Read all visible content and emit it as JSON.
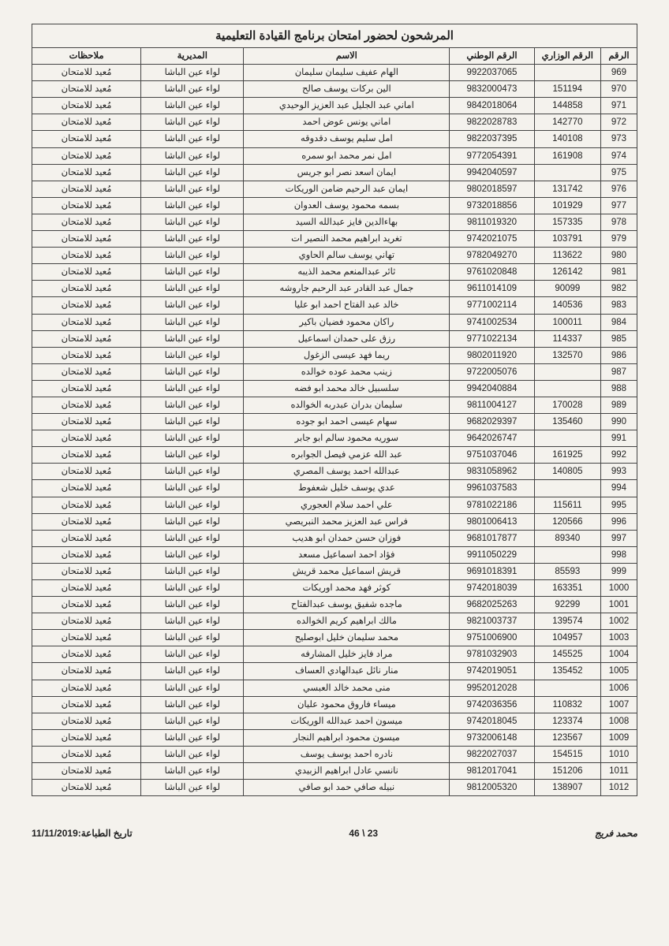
{
  "title": "المرشحون لحضور امتحان برنامج القيادة التعليمية",
  "columns": [
    "الرقم",
    "الرقم الوزاري",
    "الرقم الوطني",
    "الاسم",
    "المديرية",
    "ملاحظات"
  ],
  "directorate": "لواء عين الباشا",
  "note": "مُعيد للامتحان",
  "rows": [
    {
      "n": 969,
      "min": "",
      "nat": "9922037065",
      "name": "الهام عفيف سليمان سليمان"
    },
    {
      "n": 970,
      "min": "151194",
      "nat": "9832000473",
      "name": "الين بركات يوسف صالح"
    },
    {
      "n": 971,
      "min": "144858",
      "nat": "9842018064",
      "name": "اماني عبد الجليل عبد العزيز الوحيدي"
    },
    {
      "n": 972,
      "min": "142770",
      "nat": "9822028783",
      "name": "اماني يونس عوض احمد"
    },
    {
      "n": 973,
      "min": "140108",
      "nat": "9822037395",
      "name": "امل سليم يوسف دقدوقه"
    },
    {
      "n": 974,
      "min": "161908",
      "nat": "9772054391",
      "name": "امل نمر محمد ابو سمره"
    },
    {
      "n": 975,
      "min": "",
      "nat": "9942040597",
      "name": "ايمان اسعد نصر ابو جريس"
    },
    {
      "n": 976,
      "min": "131742",
      "nat": "9802018597",
      "name": "ايمان عبد الرحيم ضامن الوريكات"
    },
    {
      "n": 977,
      "min": "101929",
      "nat": "9732018856",
      "name": "بسمه محمود يوسف العدوان"
    },
    {
      "n": 978,
      "min": "157335",
      "nat": "9811019320",
      "name": "بهاءالدين فايز عبدالله السيد"
    },
    {
      "n": 979,
      "min": "103791",
      "nat": "9742021075",
      "name": "تغريد ابراهيم محمد النصير ات"
    },
    {
      "n": 980,
      "min": "113622",
      "nat": "9782049270",
      "name": "تهاني يوسف سالم الحاوي"
    },
    {
      "n": 981,
      "min": "126142",
      "nat": "9761020848",
      "name": "ثائر عبدالمنعم محمد الذيبه"
    },
    {
      "n": 982,
      "min": "90099",
      "nat": "9611014109",
      "name": "جمال عبد القادر عبد الرحيم جاروشه"
    },
    {
      "n": 983,
      "min": "140536",
      "nat": "9771002114",
      "name": "خالد عبد الفتاح احمد ابو عليا"
    },
    {
      "n": 984,
      "min": "100011",
      "nat": "9741002534",
      "name": "راكان محمود فضيان باكير"
    },
    {
      "n": 985,
      "min": "114337",
      "nat": "9771022134",
      "name": "رزق على حمدان اسماعيل"
    },
    {
      "n": 986,
      "min": "132570",
      "nat": "9802011920",
      "name": "ريما فهد عيسى الزغول"
    },
    {
      "n": 987,
      "min": "",
      "nat": "9722005076",
      "name": "زينب محمد عوده خوالده"
    },
    {
      "n": 988,
      "min": "",
      "nat": "9942040884",
      "name": "سلسبيل خالد محمد ابو فضه"
    },
    {
      "n": 989,
      "min": "170028",
      "nat": "9811004127",
      "name": "سليمان بدران عبدربه الخوالده"
    },
    {
      "n": 990,
      "min": "135460",
      "nat": "9682029397",
      "name": "سهام عيسى احمد ابو جوده"
    },
    {
      "n": 991,
      "min": "",
      "nat": "9642026747",
      "name": "سوريه محمود سالم ابو جابر"
    },
    {
      "n": 992,
      "min": "161925",
      "nat": "9751037046",
      "name": "عبد الله عزمي فيصل الجوابره"
    },
    {
      "n": 993,
      "min": "140805",
      "nat": "9831058962",
      "name": "عبدالله احمد يوسف المصري"
    },
    {
      "n": 994,
      "min": "",
      "nat": "9961037583",
      "name": "عدي يوسف خليل شعفوط"
    },
    {
      "n": 995,
      "min": "115611",
      "nat": "9781022186",
      "name": "علي احمد سلام العجوري"
    },
    {
      "n": 996,
      "min": "120566",
      "nat": "9801006413",
      "name": "فراس عبد العزيز محمد النبريصي"
    },
    {
      "n": 997,
      "min": "89340",
      "nat": "9681017877",
      "name": "فوزان حسن حمدان ابو هديب"
    },
    {
      "n": 998,
      "min": "",
      "nat": "9911050229",
      "name": "فؤاد احمد اسماعيل مسعد"
    },
    {
      "n": 999,
      "min": "85593",
      "nat": "9691018391",
      "name": "قريش اسماعيل محمد قريش"
    },
    {
      "n": 1000,
      "min": "163351",
      "nat": "9742018039",
      "name": "كوثر فهد محمد اوريكات"
    },
    {
      "n": 1001,
      "min": "92299",
      "nat": "9682025263",
      "name": "ماجده شفيق يوسف عبدالفتاح"
    },
    {
      "n": 1002,
      "min": "139574",
      "nat": "9821003737",
      "name": "مالك ابراهيم كريم الخوالده"
    },
    {
      "n": 1003,
      "min": "104957",
      "nat": "9751006900",
      "name": "محمد سليمان خليل ابوصليح"
    },
    {
      "n": 1004,
      "min": "145525",
      "nat": "9781032903",
      "name": "مراد فايز خليل المشارفه"
    },
    {
      "n": 1005,
      "min": "135452",
      "nat": "9742019051",
      "name": "منار نائل عبدالهادي العساف"
    },
    {
      "n": 1006,
      "min": "",
      "nat": "9952012028",
      "name": "منى محمد خالد العبسي"
    },
    {
      "n": 1007,
      "min": "110832",
      "nat": "9742036356",
      "name": "ميساء فاروق محمود عليان"
    },
    {
      "n": 1008,
      "min": "123374",
      "nat": "9742018045",
      "name": "ميسون احمد عبدالله الوريكات"
    },
    {
      "n": 1009,
      "min": "123567",
      "nat": "9732006148",
      "name": "ميسون محمود ابراهيم النجار"
    },
    {
      "n": 1010,
      "min": "154515",
      "nat": "9822027037",
      "name": "نادره احمد يوسف يوسف"
    },
    {
      "n": 1011,
      "min": "151206",
      "nat": "9812017041",
      "name": "نانسي عادل ابراهيم الزبيدي"
    },
    {
      "n": 1012,
      "min": "138907",
      "nat": "9812005320",
      "name": "نبيله صافي حمد ابو صافي"
    }
  ],
  "footer": {
    "page": "23 \\ 46",
    "print_date_label": "تاريخ الطباعة:",
    "print_date": "11/11/2019",
    "signature": "محمد فريج"
  },
  "style": {
    "page_bg": "#f4f2ed",
    "border_color": "#444444",
    "title_fontsize": 15,
    "cell_fontsize": 11.5,
    "col_widths_pct": {
      "num": 6,
      "min": 11,
      "nat": 14,
      "name": 34,
      "dir": 17,
      "notes": 18
    }
  }
}
